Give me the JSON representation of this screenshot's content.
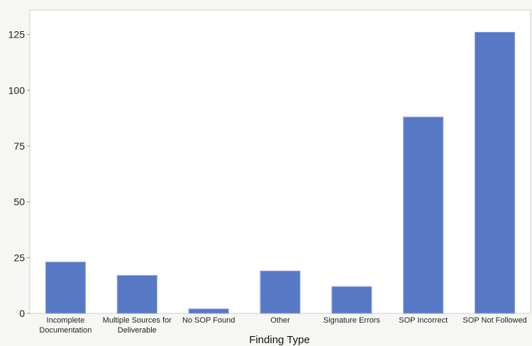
{
  "chart_data": {
    "type": "bar",
    "title": "",
    "xlabel": "Finding Type",
    "ylabel": "",
    "categories": [
      [
        "Incomplete",
        "Documentation"
      ],
      [
        "Multiple Sources for",
        "Deliverable"
      ],
      [
        "No SOP Found"
      ],
      [
        "Other"
      ],
      [
        "Signature Errors"
      ],
      [
        "SOP Incorrect"
      ],
      [
        "SOP Not Followed"
      ]
    ],
    "values": [
      23,
      17,
      2,
      19,
      12,
      88,
      126
    ],
    "ylim": [
      0,
      136
    ],
    "yticks": [
      0,
      25,
      50,
      75,
      100,
      125
    ],
    "grid": false,
    "bar_color": "#5778c4"
  }
}
